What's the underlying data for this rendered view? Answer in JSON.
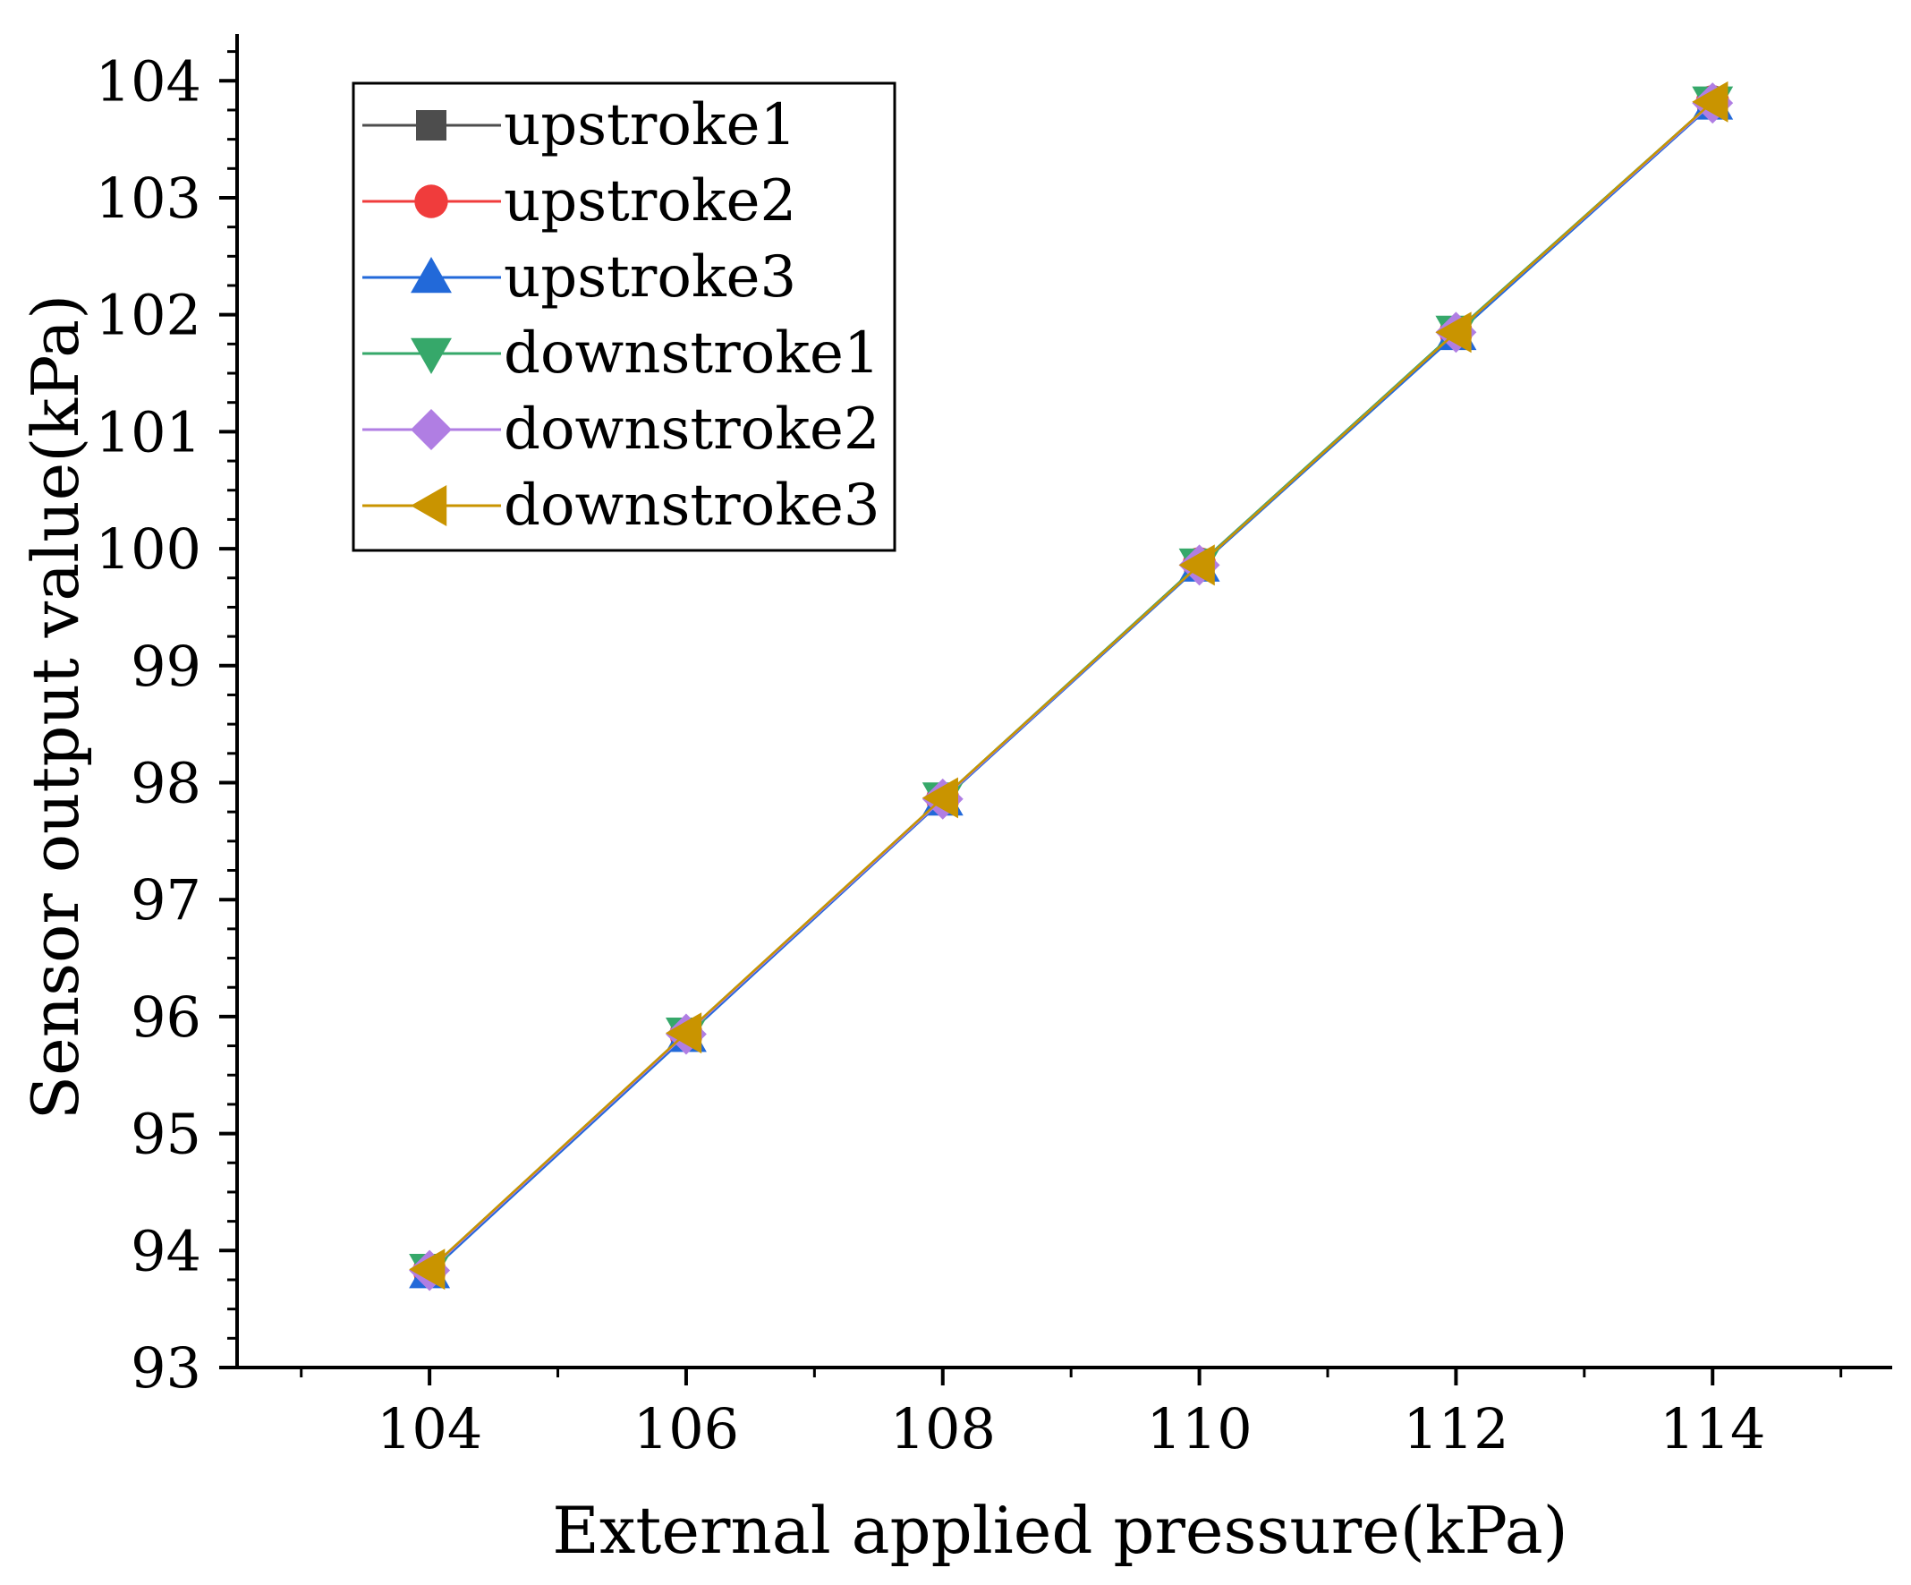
{
  "chart_data": {
    "type": "line",
    "xlabel": "External applied pressure(kPa)",
    "ylabel": "Sensor output value(kPa)",
    "xlim": [
      102.5,
      115.4
    ],
    "ylim": [
      93,
      104.4
    ],
    "x_ticks": [
      "104",
      "106",
      "108",
      "110",
      "112",
      "114"
    ],
    "y_ticks": [
      "93",
      "94",
      "95",
      "96",
      "97",
      "98",
      "99",
      "100",
      "101",
      "102",
      "103",
      "104"
    ],
    "x": [
      104,
      106,
      108,
      110,
      112,
      114
    ],
    "series": [
      {
        "name": "upstroke1",
        "marker": "square",
        "color": "#4d4d4d",
        "values": [
          93.82,
          95.84,
          97.85,
          99.86,
          101.84,
          103.81
        ]
      },
      {
        "name": "upstroke2",
        "marker": "circle",
        "color": "#f03c3c",
        "values": [
          93.83,
          95.85,
          97.86,
          99.87,
          101.85,
          103.82
        ]
      },
      {
        "name": "upstroke3",
        "marker": "triangle-up",
        "color": "#2269d9",
        "values": [
          93.81,
          95.83,
          97.85,
          99.85,
          101.83,
          103.8
        ]
      },
      {
        "name": "downstroke1",
        "marker": "triangle-down",
        "color": "#36a86a",
        "values": [
          93.84,
          95.86,
          97.87,
          99.87,
          101.86,
          103.82
        ]
      },
      {
        "name": "downstroke2",
        "marker": "diamond",
        "color": "#b07ee3",
        "values": [
          93.83,
          95.85,
          97.86,
          99.86,
          101.85,
          103.81
        ]
      },
      {
        "name": "downstroke3",
        "marker": "triangle-left",
        "color": "#c99400",
        "values": [
          93.84,
          95.86,
          97.87,
          99.86,
          101.85,
          103.82
        ]
      }
    ],
    "legend_position": "top-left",
    "grid": false
  }
}
